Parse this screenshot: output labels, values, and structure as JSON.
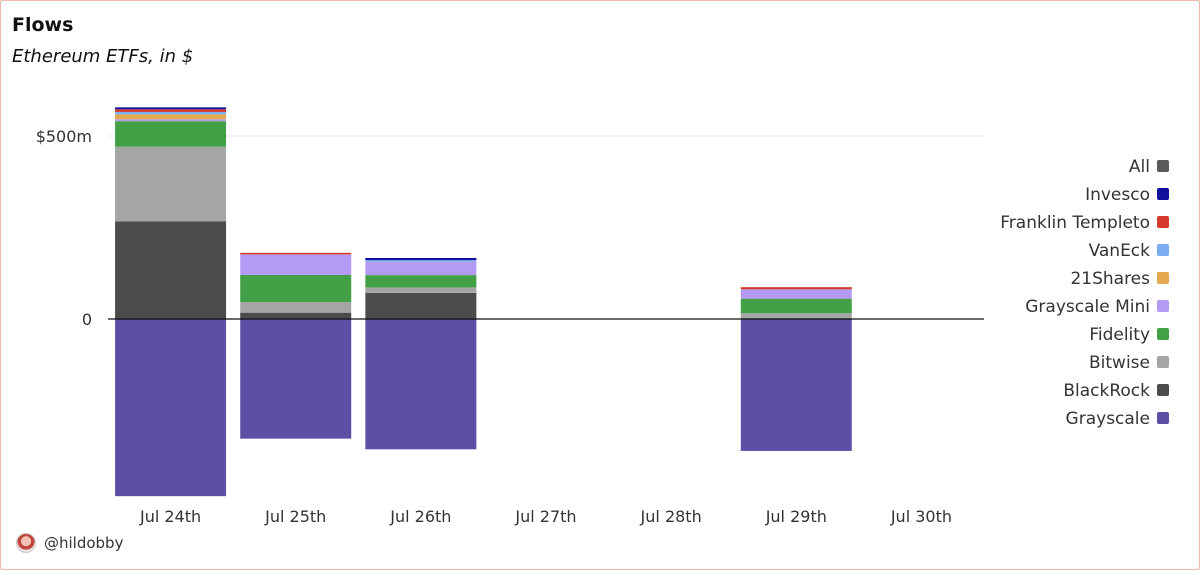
{
  "header": {
    "title": "Flows",
    "subtitle": "Ethereum ETFs, in $"
  },
  "footer": {
    "handle": "@hildobby"
  },
  "chart_data": {
    "type": "bar",
    "stacked": true,
    "title": "Flows",
    "subtitle": "Ethereum ETFs, in $",
    "xlabel": "",
    "ylabel": "",
    "ylim": [
      -480,
      590
    ],
    "yticks": [
      {
        "value": 0,
        "label": "0"
      },
      {
        "value": 500,
        "label": "$500m"
      }
    ],
    "grid": true,
    "legend_position": "right",
    "categories": [
      "Jul 24th",
      "Jul 25th",
      "Jul 26th",
      "Jul 27th",
      "Jul 28th",
      "Jul 29th",
      "Jul 30th"
    ],
    "series": [
      {
        "name": "All",
        "color": "#595959",
        "values": [
          0,
          0,
          0,
          0,
          0,
          0,
          0
        ]
      },
      {
        "name": "Invesco",
        "color": "#10109c",
        "values": [
          5.4,
          0,
          5.8,
          0,
          0,
          0,
          0
        ]
      },
      {
        "name": "Franklin Templeto",
        "color": "#d63a2f",
        "values": [
          7.2,
          4.2,
          0,
          0,
          0,
          5.8,
          0
        ]
      },
      {
        "name": "VanEck",
        "color": "#7aaef0",
        "values": [
          6.5,
          0,
          4.3,
          0,
          0,
          0,
          0
        ]
      },
      {
        "name": "21Shares",
        "color": "#e5a84f",
        "values": [
          13.3,
          0,
          0,
          0,
          0,
          0,
          0
        ]
      },
      {
        "name": "Grayscale Mini",
        "color": "#b49af2",
        "values": [
          5.4,
          56.3,
          36.7,
          0,
          0,
          25.6,
          0
        ]
      },
      {
        "name": "Fidelity",
        "color": "#43a047",
        "values": [
          70,
          73.8,
          33.6,
          0,
          0,
          39.5,
          0
        ]
      },
      {
        "name": "Bitwise",
        "color": "#a3a6a3",
        "values": [
          204,
          29.2,
          15,
          0,
          0,
          14,
          0
        ]
      },
      {
        "name": "BlackRock",
        "color": "#4c4c4c",
        "values": [
          266.5,
          17.3,
          71.3,
          0,
          0,
          2.1,
          0
        ]
      },
      {
        "name": "Grayscale",
        "color": "#5f4ea6",
        "values": [
          -484.1,
          -326.9,
          -356.1,
          0,
          0,
          -360.5,
          0
        ]
      }
    ]
  }
}
